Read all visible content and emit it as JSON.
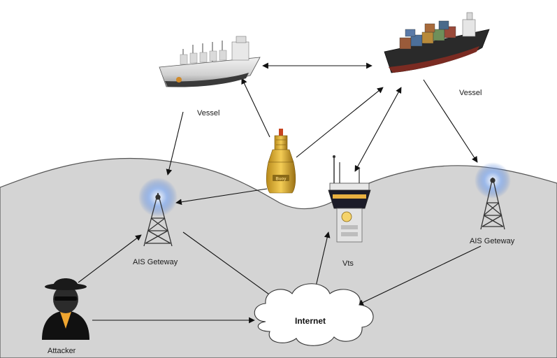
{
  "nodes": {
    "vessel_left": {
      "label": "Vessel"
    },
    "vessel_right": {
      "label": "Vessel"
    },
    "buoy": {
      "label": "",
      "plate_text": "Buoy"
    },
    "ais_left": {
      "label": "AIS Geteway"
    },
    "ais_right": {
      "label": "AIS Geteway"
    },
    "vts": {
      "label": "Vts"
    },
    "internet": {
      "label": "Internet"
    },
    "attacker": {
      "label": "Attacker"
    }
  },
  "edges": [
    {
      "from": "vessel_left",
      "to": "vessel_right",
      "bidirectional": true
    },
    {
      "from": "vessel_left",
      "to": "ais_left",
      "bidirectional": false
    },
    {
      "from": "buoy",
      "to": "vessel_left",
      "bidirectional": false
    },
    {
      "from": "buoy",
      "to": "vessel_right",
      "bidirectional": false
    },
    {
      "from": "buoy",
      "to": "ais_left",
      "bidirectional": false
    },
    {
      "from": "vts",
      "to": "vessel_right",
      "bidirectional": true
    },
    {
      "from": "vessel_right",
      "to": "ais_right",
      "bidirectional": false
    },
    {
      "from": "ais_left",
      "to": "internet",
      "bidirectional": false
    },
    {
      "from": "ais_right",
      "to": "internet",
      "bidirectional": false
    },
    {
      "from": "vts",
      "to": "internet",
      "bidirectional": true
    },
    {
      "from": "attacker",
      "to": "ais_left",
      "bidirectional": false
    },
    {
      "from": "attacker",
      "to": "internet",
      "bidirectional": false
    }
  ],
  "colors": {
    "land": "#d4d4d4",
    "ground_outline": "#555555",
    "tower_glow": "#4a7fd0"
  }
}
